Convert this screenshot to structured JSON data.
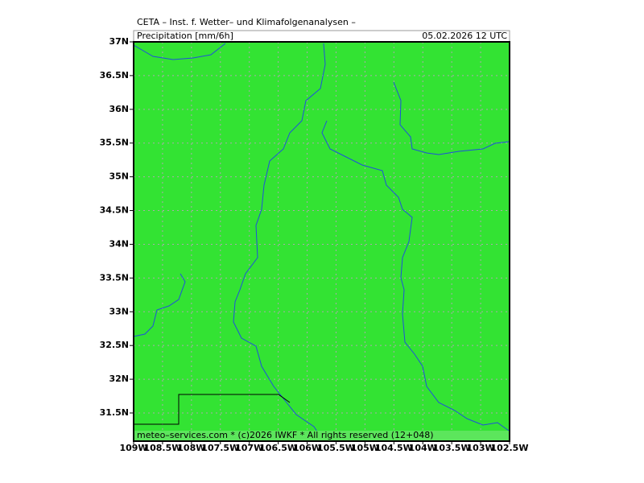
{
  "header": {
    "title": "CETA – Inst. f. Wetter– und Klimafolgenanalysen –",
    "variable": "Precipitation [mm/6h]",
    "datetime": "05.02.2026  12 UTC"
  },
  "footer": {
    "credit": "meteo–services.com * (c)2026 IWKF * All rights reserved (12+048)"
  },
  "axes": {
    "lat_labels": [
      "37N",
      "36.5N",
      "36N",
      "35.5N",
      "35N",
      "34.5N",
      "34N",
      "33.5N",
      "33N",
      "32.5N",
      "32N",
      "31.5N"
    ],
    "lon_labels": [
      "109W",
      "108.5W",
      "108W",
      "107.5W",
      "107W",
      "106.5W",
      "106W",
      "105.5W",
      "105W",
      "104.5W",
      "104W",
      "103.5W",
      "103W",
      "102.5W"
    ]
  }
}
